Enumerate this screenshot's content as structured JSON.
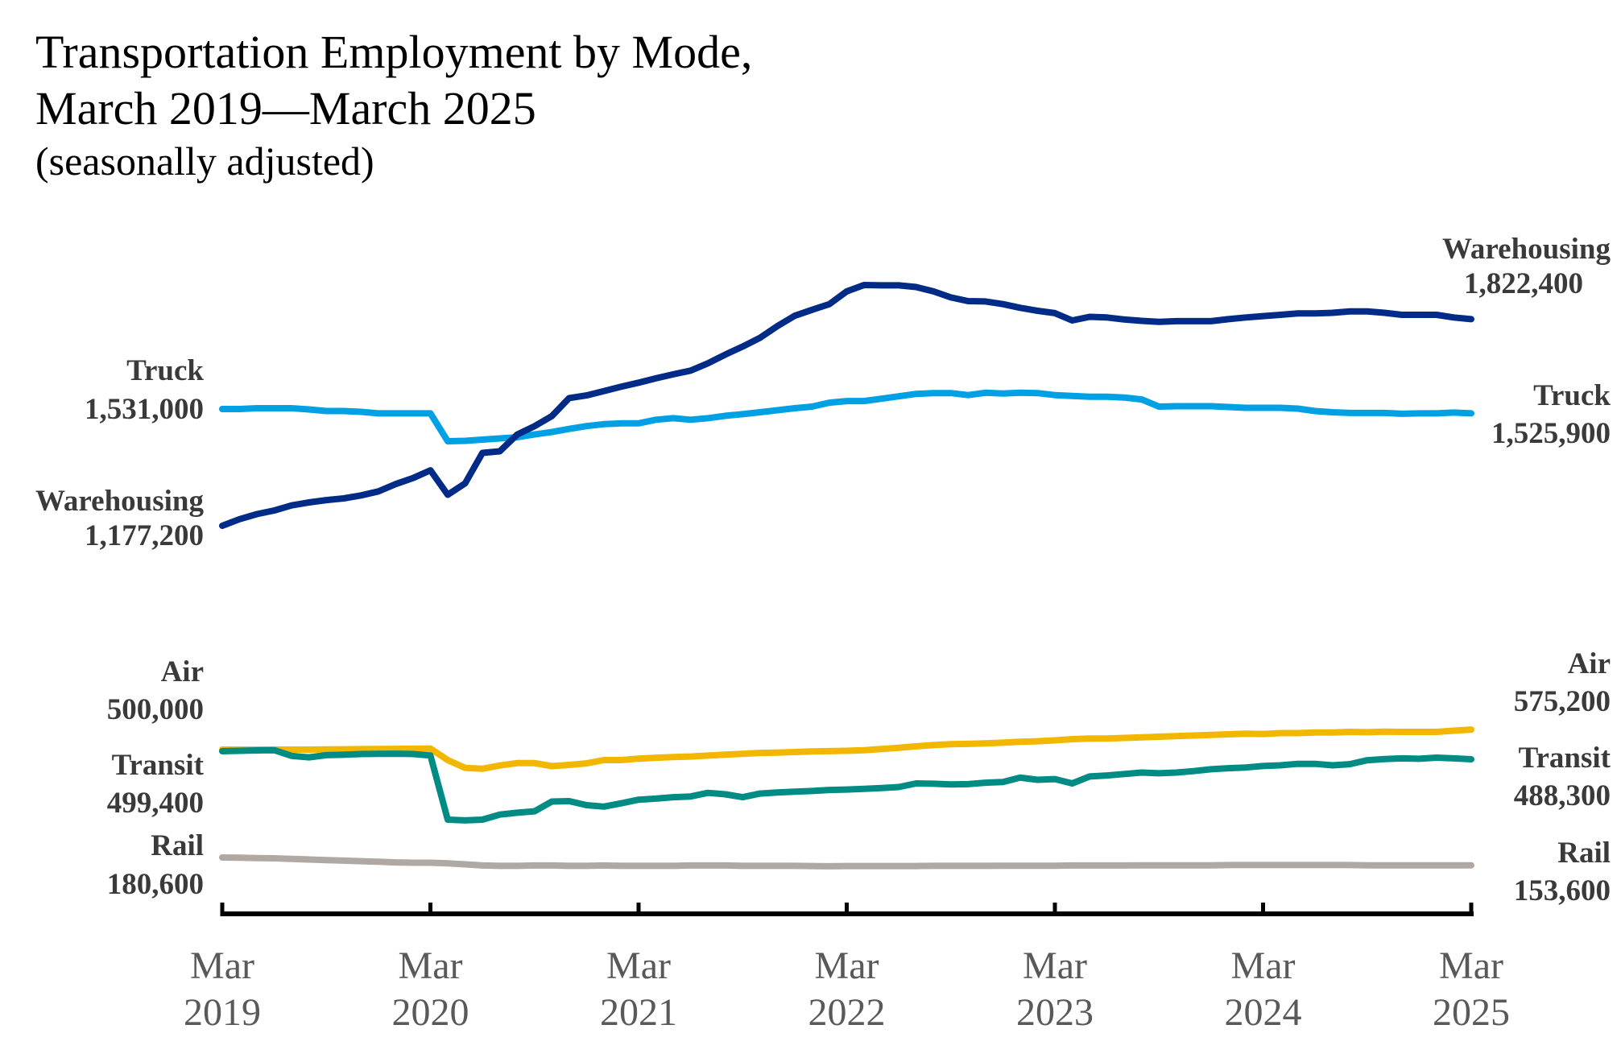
{
  "title": {
    "line1": "Transportation Employment by Mode,",
    "line2": "March 2019—March 2025",
    "subtitle": "(seasonally adjusted)"
  },
  "chart_data": {
    "type": "line",
    "x_start": "2019-03",
    "x_end": "2025-03",
    "frequency": "monthly",
    "x_ticks": [
      {
        "top": "Mar",
        "bottom": "2019"
      },
      {
        "top": "Mar",
        "bottom": "2020"
      },
      {
        "top": "Mar",
        "bottom": "2021"
      },
      {
        "top": "Mar",
        "bottom": "2022"
      },
      {
        "top": "Mar",
        "bottom": "2023"
      },
      {
        "top": "Mar",
        "bottom": "2024"
      },
      {
        "top": "Mar",
        "bottom": "2025"
      }
    ],
    "grid": false,
    "legend": "direct labels at line ends",
    "series": [
      {
        "name": "Warehousing",
        "color": "#002b87",
        "start_value_label": "1,177,200",
        "end_value_label": "1,822,400",
        "values": [
          1177200,
          1197000,
          1212000,
          1223000,
          1238000,
          1247000,
          1254000,
          1259000,
          1268000,
          1280000,
          1302000,
          1320000,
          1343000,
          1270000,
          1304000,
          1395000,
          1400000,
          1450000,
          1475000,
          1505000,
          1559000,
          1567000,
          1580000,
          1593000,
          1605000,
          1618000,
          1630000,
          1641000,
          1663000,
          1689000,
          1713000,
          1739000,
          1774000,
          1805000,
          1823000,
          1840000,
          1878000,
          1897000,
          1896000,
          1896000,
          1891000,
          1878000,
          1860000,
          1849000,
          1848000,
          1840000,
          1829000,
          1820000,
          1813000,
          1791000,
          1802000,
          1800000,
          1794000,
          1790000,
          1787000,
          1789000,
          1789000,
          1789000,
          1795000,
          1800000,
          1804000,
          1808000,
          1812000,
          1812000,
          1814000,
          1818000,
          1818000,
          1814000,
          1808000,
          1808000,
          1808000,
          1800000,
          1795000,
          1784000,
          1822400
        ]
      },
      {
        "name": "Truck",
        "color": "#00a1e4",
        "start_value_label": "1,531,000",
        "end_value_label": "1,525,900",
        "values": [
          1531000,
          1531000,
          1533000,
          1533000,
          1533000,
          1530000,
          1526000,
          1526000,
          1524000,
          1520000,
          1520000,
          1520000,
          1520000,
          1450000,
          1451000,
          1454000,
          1457000,
          1460000,
          1467000,
          1473000,
          1481000,
          1488000,
          1493000,
          1495000,
          1495000,
          1504000,
          1508000,
          1504000,
          1508000,
          1514000,
          1518000,
          1523000,
          1528000,
          1533000,
          1537000,
          1547000,
          1551000,
          1551000,
          1557000,
          1563000,
          1569000,
          1571000,
          1571000,
          1566000,
          1572000,
          1570000,
          1572000,
          1571000,
          1566000,
          1564000,
          1562000,
          1562000,
          1560000,
          1555000,
          1537000,
          1538000,
          1538000,
          1538000,
          1536000,
          1534000,
          1534000,
          1534000,
          1532000,
          1526000,
          1523000,
          1521000,
          1521000,
          1521000,
          1519000,
          1520000,
          1520000,
          1522000,
          1520000,
          1525900
        ]
      },
      {
        "name": "Air",
        "color": "#f2b700",
        "start_value_label": "500,000",
        "end_value_label": "575,200",
        "values": [
          500000,
          500000,
          500000,
          500000,
          500000,
          500000,
          500500,
          501000,
          501500,
          502000,
          502500,
          503000,
          503500,
          465000,
          439000,
          436000,
          447000,
          455000,
          455000,
          445000,
          449000,
          454000,
          465000,
          465000,
          470000,
          473000,
          475000,
          477000,
          480000,
          483000,
          486000,
          489000,
          490000,
          492000,
          494000,
          495000,
          496000,
          498000,
          502000,
          506000,
          511000,
          515000,
          518000,
          519000,
          521000,
          523000,
          526000,
          528000,
          531000,
          535000,
          537000,
          537000,
          539000,
          541000,
          543000,
          545000,
          547000,
          549000,
          551000,
          553000,
          552000,
          555000,
          555000,
          557000,
          557000,
          559000,
          558000,
          560000,
          559000,
          559000,
          559000,
          563000,
          567000,
          571000,
          575200
        ]
      },
      {
        "name": "Transit",
        "color": "#008c85",
        "start_value_label": "499,400",
        "end_value_label": "488,300",
        "values": [
          499400,
          500000,
          500500,
          500800,
          493000,
          491000,
          494000,
          494500,
          495500,
          495800,
          496000,
          495500,
          493500,
          405000,
          404000,
          405000,
          412000,
          414500,
          416500,
          430000,
          430500,
          425000,
          423000,
          427500,
          432500,
          434000,
          436000,
          437000,
          442000,
          440000,
          436000,
          441000,
          442500,
          443500,
          444500,
          446000,
          446500,
          447500,
          448500,
          450000,
          455000,
          454500,
          453500,
          454000,
          456000,
          457000,
          463000,
          460000,
          461000,
          455000,
          464500,
          466000,
          468000,
          470000,
          469000,
          470000,
          472000,
          474500,
          476000,
          477000,
          479000,
          480000,
          482000,
          482000,
          480000,
          481500,
          487000,
          488500,
          489500,
          489000,
          490500,
          489500,
          488300
        ]
      },
      {
        "name": "Rail",
        "color": "#b0a8a2",
        "start_value_label": "180,600",
        "end_value_label": "153,600",
        "values": [
          180600,
          180000,
          179000,
          178500,
          177000,
          175500,
          174000,
          172500,
          171000,
          169500,
          168000,
          167000,
          167000,
          165500,
          163000,
          160000,
          159000,
          159000,
          160000,
          160000,
          159000,
          159000,
          160000,
          159000,
          159000,
          159000,
          159000,
          160000,
          160000,
          160000,
          159000,
          159000,
          159000,
          159000,
          158500,
          158000,
          158500,
          158500,
          158500,
          158500,
          158500,
          159000,
          159000,
          159000,
          159000,
          159500,
          159500,
          159500,
          159500,
          160000,
          160000,
          160000,
          160000,
          160500,
          160500,
          160500,
          160500,
          160500,
          161000,
          161000,
          161000,
          161000,
          161000,
          161000,
          161000,
          161000,
          160500,
          160500,
          160500,
          160500,
          160500,
          160500,
          160500,
          160500,
          153600
        ]
      }
    ]
  }
}
